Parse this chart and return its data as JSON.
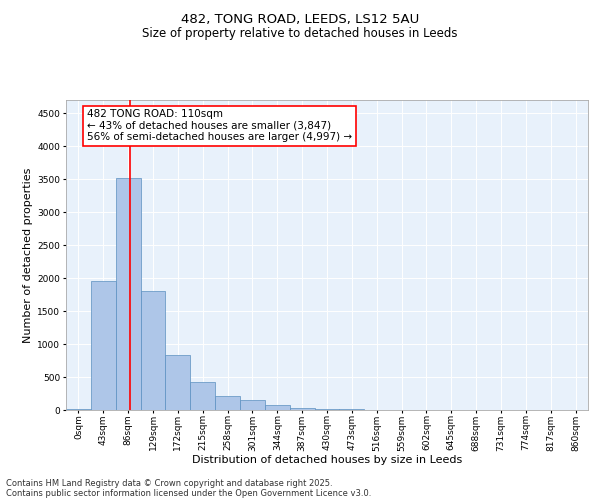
{
  "title_line1": "482, TONG ROAD, LEEDS, LS12 5AU",
  "title_line2": "Size of property relative to detached houses in Leeds",
  "xlabel": "Distribution of detached houses by size in Leeds",
  "ylabel": "Number of detached properties",
  "bar_labels": [
    "0sqm",
    "43sqm",
    "86sqm",
    "129sqm",
    "172sqm",
    "215sqm",
    "258sqm",
    "301sqm",
    "344sqm",
    "387sqm",
    "430sqm",
    "473sqm",
    "516sqm",
    "559sqm",
    "602sqm",
    "645sqm",
    "688sqm",
    "731sqm",
    "774sqm",
    "817sqm",
    "860sqm"
  ],
  "bar_values": [
    10,
    1950,
    3520,
    1800,
    840,
    430,
    210,
    145,
    80,
    30,
    15,
    8,
    4,
    2,
    1,
    1,
    0,
    0,
    0,
    0,
    0
  ],
  "bar_color": "#aec6e8",
  "bar_edge_color": "#5a8fc0",
  "vline_x": 2.57,
  "vline_color": "red",
  "annotation_text": "482 TONG ROAD: 110sqm\n← 43% of detached houses are smaller (3,847)\n56% of semi-detached houses are larger (4,997) →",
  "annotation_box_color": "white",
  "annotation_box_edge_color": "red",
  "ylim": [
    0,
    4700
  ],
  "yticks": [
    0,
    500,
    1000,
    1500,
    2000,
    2500,
    3000,
    3500,
    4000,
    4500
  ],
  "background_color": "#e8f1fb",
  "footer_line1": "Contains HM Land Registry data © Crown copyright and database right 2025.",
  "footer_line2": "Contains public sector information licensed under the Open Government Licence v3.0.",
  "title_fontsize": 9.5,
  "subtitle_fontsize": 8.5,
  "axis_label_fontsize": 8,
  "tick_fontsize": 6.5,
  "annotation_fontsize": 7.5,
  "footer_fontsize": 6
}
